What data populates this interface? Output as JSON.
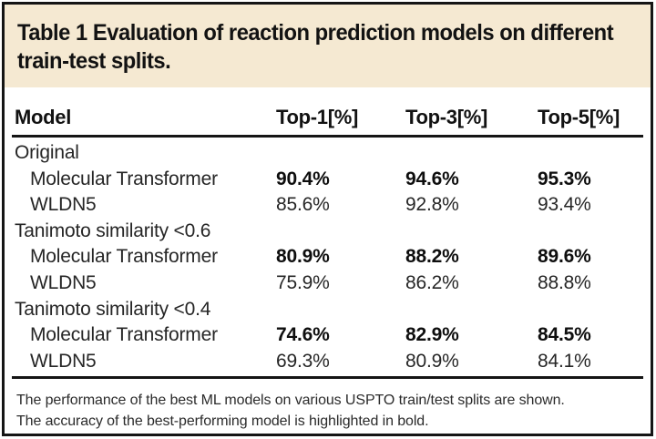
{
  "colors": {
    "title_band_bg": "#f5e9d2",
    "border": "#151515",
    "title_text": "#121212",
    "body_text": "#262626",
    "bold_value_text": "#0e0e0e",
    "footnote_text": "#2b2b2b"
  },
  "title": {
    "line1": "Table 1 Evaluation of reaction prediction models on different",
    "line2": "train-test splits."
  },
  "table": {
    "columns": [
      "Model",
      "Top-1[%]",
      "Top-3[%]",
      "Top-5[%]"
    ],
    "rows": [
      {
        "type": "group",
        "label": "Original"
      },
      {
        "type": "data",
        "label": "Molecular Transformer",
        "bold": true,
        "values": [
          "90.4%",
          "94.6%",
          "95.3%"
        ]
      },
      {
        "type": "data",
        "label": "WLDN5",
        "bold": false,
        "values": [
          "85.6%",
          "92.8%",
          "93.4%"
        ]
      },
      {
        "type": "group",
        "label": "Tanimoto similarity <0.6"
      },
      {
        "type": "data",
        "label": "Molecular Transformer",
        "bold": true,
        "values": [
          "80.9%",
          "88.2%",
          "89.6%"
        ]
      },
      {
        "type": "data",
        "label": "WLDN5",
        "bold": false,
        "values": [
          "75.9%",
          "86.2%",
          "88.8%"
        ]
      },
      {
        "type": "group",
        "label": "Tanimoto similarity <0.4"
      },
      {
        "type": "data",
        "label": "Molecular Transformer",
        "bold": true,
        "values": [
          "74.6%",
          "82.9%",
          "84.5%"
        ]
      },
      {
        "type": "data",
        "label": "WLDN5",
        "bold": false,
        "values": [
          "69.3%",
          "80.9%",
          "84.1%"
        ]
      }
    ]
  },
  "footnote": {
    "line1": "The performance of the best ML models on various USPTO train/test splits are shown.",
    "line2": "The accuracy of the best-performing model is highlighted in bold."
  }
}
